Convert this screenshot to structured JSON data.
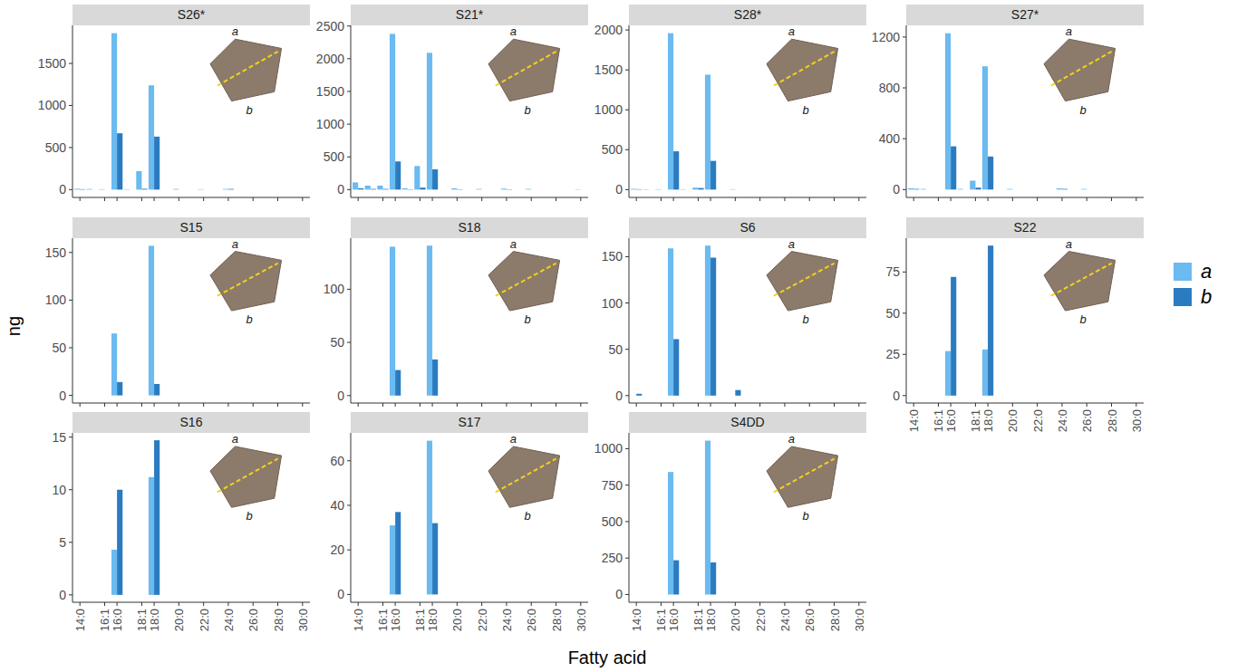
{
  "x_label": "Fatty acid",
  "y_label": "ng",
  "legend": "right",
  "chart_data": [
    {
      "type": "bar",
      "title": "S26*",
      "tick_labels": "y",
      "annotations": [
        "a",
        "b"
      ],
      "categories": [
        "14:0",
        null,
        "16:1",
        "16:0",
        null,
        "18:1",
        "18:0",
        null,
        "20:0",
        null,
        "22:0",
        null,
        "24:0",
        null,
        "26:0",
        null,
        "28:0",
        null,
        "30:0"
      ],
      "series": [
        {
          "name": "a",
          "color": "#6bbaf0",
          "values": [
            10,
            8,
            5,
            1860,
            5,
            220,
            1240,
            0,
            8,
            0,
            5,
            0,
            8,
            0,
            0,
            0,
            0,
            0,
            0
          ]
        },
        {
          "name": "b",
          "color": "#2b7bc0",
          "values": [
            5,
            0,
            0,
            670,
            0,
            10,
            630,
            0,
            0,
            0,
            0,
            0,
            8,
            0,
            0,
            0,
            0,
            0,
            0
          ]
        }
      ],
      "ylim": [
        -93,
        1953
      ],
      "yticks": [
        0,
        500,
        1000,
        1500
      ]
    },
    {
      "type": "bar",
      "title": "S21*",
      "tick_labels": "y",
      "annotations": [
        "a",
        "b"
      ],
      "categories": [
        "14:0",
        null,
        "16:1",
        "16:0",
        null,
        "18:1",
        "18:0",
        null,
        "20:0",
        null,
        "22:0",
        null,
        "24:0",
        null,
        "26:0",
        null,
        "28:0",
        null,
        "30:0"
      ],
      "series": [
        {
          "name": "a",
          "color": "#6bbaf0",
          "values": [
            110,
            60,
            60,
            2380,
            20,
            360,
            2090,
            0,
            20,
            0,
            10,
            0,
            15,
            0,
            10,
            0,
            0,
            0,
            5
          ]
        },
        {
          "name": "b",
          "color": "#2b7bc0",
          "values": [
            20,
            10,
            10,
            430,
            5,
            30,
            310,
            0,
            5,
            0,
            0,
            0,
            5,
            0,
            0,
            0,
            0,
            0,
            0
          ]
        }
      ],
      "ylim": [
        -120,
        2510
      ],
      "yticks": [
        0,
        500,
        1000,
        1500,
        2000,
        2500
      ]
    },
    {
      "type": "bar",
      "title": "S28*",
      "tick_labels": "y",
      "annotations": [
        "a",
        "b"
      ],
      "categories": [
        "14:0",
        null,
        "16:1",
        "16:0",
        null,
        "18:1",
        "18:0",
        null,
        "20:0",
        null,
        "22:0",
        null,
        "24:0",
        null,
        "26:0",
        null,
        "28:0",
        null,
        "30:0"
      ],
      "series": [
        {
          "name": "a",
          "color": "#6bbaf0",
          "values": [
            10,
            5,
            5,
            1960,
            5,
            25,
            1440,
            0,
            5,
            0,
            0,
            0,
            0,
            0,
            0,
            0,
            0,
            0,
            0
          ]
        },
        {
          "name": "b",
          "color": "#2b7bc0",
          "values": [
            5,
            0,
            0,
            480,
            0,
            20,
            360,
            0,
            0,
            0,
            0,
            0,
            0,
            0,
            0,
            0,
            0,
            0,
            0
          ]
        }
      ],
      "ylim": [
        -98,
        2058
      ],
      "yticks": [
        0,
        500,
        1000,
        1500,
        2000
      ]
    },
    {
      "type": "bar",
      "title": "S27*",
      "tick_labels": "y",
      "annotations": [
        "a",
        "b"
      ],
      "categories": [
        "14:0",
        null,
        "16:1",
        "16:0",
        null,
        "18:1",
        "18:0",
        null,
        "20:0",
        null,
        "22:0",
        null,
        "24:0",
        null,
        "26:0",
        null,
        "28:0",
        null,
        "30:0"
      ],
      "series": [
        {
          "name": "a",
          "color": "#6bbaf0",
          "values": [
            10,
            5,
            0,
            1230,
            5,
            70,
            970,
            0,
            5,
            0,
            0,
            0,
            10,
            0,
            5,
            0,
            0,
            0,
            0
          ]
        },
        {
          "name": "b",
          "color": "#2b7bc0",
          "values": [
            5,
            0,
            0,
            340,
            0,
            15,
            260,
            0,
            0,
            0,
            0,
            0,
            5,
            0,
            0,
            0,
            0,
            0,
            0
          ]
        }
      ],
      "ylim": [
        -62,
        1292
      ],
      "yticks": [
        0,
        400,
        800,
        1200
      ]
    },
    {
      "type": "bar",
      "title": "S15",
      "tick_labels": "y",
      "annotations": [
        "a",
        "b"
      ],
      "categories": [
        "14:0",
        null,
        "16:1",
        "16:0",
        null,
        "18:1",
        "18:0",
        null,
        "20:0",
        null,
        "22:0",
        null,
        "24:0",
        null,
        "26:0",
        null,
        "28:0",
        null,
        "30:0"
      ],
      "series": [
        {
          "name": "a",
          "color": "#6bbaf0",
          "values": [
            0,
            0,
            0,
            65,
            0,
            0,
            157,
            0,
            0,
            0,
            0,
            0,
            0,
            0,
            0,
            0,
            0,
            0,
            0
          ]
        },
        {
          "name": "b",
          "color": "#2b7bc0",
          "values": [
            0,
            0,
            0,
            14,
            0,
            0,
            12,
            0,
            0,
            0,
            0,
            0,
            0,
            0,
            0,
            0,
            0,
            0,
            0
          ]
        }
      ],
      "ylim": [
        -8,
        165
      ],
      "yticks": [
        0,
        50,
        100,
        150
      ]
    },
    {
      "type": "bar",
      "title": "S18",
      "tick_labels": "y",
      "annotations": [
        "a",
        "b"
      ],
      "categories": [
        "14:0",
        null,
        "16:1",
        "16:0",
        null,
        "18:1",
        "18:0",
        null,
        "20:0",
        null,
        "22:0",
        null,
        "24:0",
        null,
        "26:0",
        null,
        "28:0",
        null,
        "30:0"
      ],
      "series": [
        {
          "name": "a",
          "color": "#6bbaf0",
          "values": [
            0,
            0,
            0,
            140,
            0,
            0,
            141,
            0,
            0,
            0,
            0,
            0,
            0,
            0,
            0,
            0,
            0,
            0,
            0
          ]
        },
        {
          "name": "b",
          "color": "#2b7bc0",
          "values": [
            0,
            0,
            0,
            24,
            0,
            0,
            34,
            0,
            0,
            0,
            0,
            0,
            0,
            0,
            0,
            0,
            0,
            0,
            0
          ]
        }
      ],
      "ylim": [
        -7,
        148
      ],
      "yticks": [
        0,
        50,
        100
      ]
    },
    {
      "type": "bar",
      "title": "S6",
      "tick_labels": "y",
      "annotations": [
        "a",
        "b"
      ],
      "categories": [
        "14:0",
        null,
        "16:1",
        "16:0",
        null,
        "18:1",
        "18:0",
        null,
        "20:0",
        null,
        "22:0",
        null,
        "24:0",
        null,
        "26:0",
        null,
        "28:0",
        null,
        "30:0"
      ],
      "series": [
        {
          "name": "a",
          "color": "#6bbaf0",
          "values": [
            0,
            0,
            0,
            159,
            0,
            0,
            162,
            0,
            0,
            0,
            0,
            0,
            0,
            0,
            0,
            0,
            0,
            0,
            0
          ]
        },
        {
          "name": "b",
          "color": "#2b7bc0",
          "values": [
            2,
            0,
            0,
            61,
            0,
            0,
            149,
            0,
            6,
            0,
            0,
            0,
            0,
            0,
            0,
            0,
            0,
            0,
            0
          ]
        }
      ],
      "ylim": [
        -8,
        170
      ],
      "yticks": [
        0,
        50,
        100,
        150
      ]
    },
    {
      "type": "bar",
      "title": "S22",
      "annotations": [
        "a",
        "b"
      ],
      "categories": [
        "14:0",
        null,
        "16:1",
        "16:0",
        null,
        "18:1",
        "18:0",
        null,
        "20:0",
        null,
        "22:0",
        null,
        "24:0",
        null,
        "26:0",
        null,
        "28:0",
        null,
        "30:0"
      ],
      "series": [
        {
          "name": "a",
          "color": "#6bbaf0",
          "values": [
            0,
            0,
            0,
            27,
            0,
            0,
            28,
            0,
            0,
            0,
            0,
            0,
            0,
            0,
            0,
            0,
            0,
            0,
            0
          ]
        },
        {
          "name": "b",
          "color": "#2b7bc0",
          "values": [
            0,
            0,
            0,
            72,
            0,
            0,
            91,
            0,
            0,
            0,
            0,
            0,
            0,
            0,
            0,
            0,
            0,
            0,
            0
          ]
        }
      ],
      "ylim": [
        -4.5,
        95.5
      ],
      "yticks": [
        0,
        25,
        50,
        75
      ]
    },
    {
      "type": "bar",
      "title": "S16",
      "annotations": [
        "a",
        "b"
      ],
      "categories": [
        "14:0",
        null,
        "16:1",
        "16:0",
        null,
        "18:1",
        "18:0",
        null,
        "20:0",
        null,
        "22:0",
        null,
        "24:0",
        null,
        "26:0",
        null,
        "28:0",
        null,
        "30:0"
      ],
      "series": [
        {
          "name": "a",
          "color": "#6bbaf0",
          "values": [
            0,
            0,
            0,
            4.3,
            0,
            0,
            11.2,
            0,
            0,
            0,
            0,
            0,
            0,
            0,
            0,
            0,
            0,
            0,
            0
          ]
        },
        {
          "name": "b",
          "color": "#2b7bc0",
          "values": [
            0,
            0,
            0,
            10,
            0,
            0,
            14.7,
            0,
            0,
            0,
            0,
            0,
            0,
            0,
            0,
            0,
            0,
            0,
            0
          ]
        }
      ],
      "ylim": [
        -0.7,
        15.4
      ],
      "yticks": [
        0,
        5,
        10,
        15
      ]
    },
    {
      "type": "bar",
      "title": "S17",
      "annotations": [
        "a",
        "b"
      ],
      "categories": [
        "14:0",
        null,
        "16:1",
        "16:0",
        null,
        "18:1",
        "18:0",
        null,
        "20:0",
        null,
        "22:0",
        null,
        "24:0",
        null,
        "26:0",
        null,
        "28:0",
        null,
        "30:0"
      ],
      "series": [
        {
          "name": "a",
          "color": "#6bbaf0",
          "values": [
            0,
            0,
            0,
            31,
            0,
            0,
            69,
            0,
            0,
            0,
            0,
            0,
            0,
            0,
            0,
            0,
            0,
            0,
            0
          ]
        },
        {
          "name": "b",
          "color": "#2b7bc0",
          "values": [
            0,
            0,
            0,
            37,
            0,
            0,
            32,
            0,
            0,
            0,
            0,
            0,
            0,
            0,
            0,
            0,
            0,
            0,
            0
          ]
        }
      ],
      "ylim": [
        -3.5,
        72.5
      ],
      "yticks": [
        0,
        20,
        40,
        60
      ]
    },
    {
      "type": "bar",
      "title": "S4DD",
      "annotations": [
        "a",
        "b"
      ],
      "categories": [
        "14:0",
        null,
        "16:1",
        "16:0",
        null,
        "18:1",
        "18:0",
        null,
        "20:0",
        null,
        "22:0",
        null,
        "24:0",
        null,
        "26:0",
        null,
        "28:0",
        null,
        "30:0"
      ],
      "series": [
        {
          "name": "a",
          "color": "#6bbaf0",
          "values": [
            0,
            0,
            0,
            840,
            0,
            0,
            1055,
            0,
            0,
            0,
            0,
            0,
            0,
            0,
            0,
            0,
            0,
            0,
            0
          ]
        },
        {
          "name": "b",
          "color": "#2b7bc0",
          "values": [
            0,
            0,
            0,
            235,
            0,
            0,
            220,
            0,
            0,
            0,
            0,
            0,
            0,
            0,
            0,
            0,
            0,
            0,
            0
          ]
        }
      ],
      "ylim": [
        -53,
        1108
      ],
      "yticks": [
        0,
        250,
        500,
        750,
        1000
      ]
    }
  ]
}
